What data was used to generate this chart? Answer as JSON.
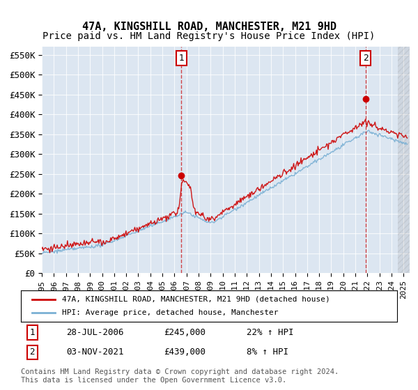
{
  "title": "47A, KINGSHILL ROAD, MANCHESTER, M21 9HD",
  "subtitle": "Price paid vs. HM Land Registry's House Price Index (HPI)",
  "ylabel_ticks": [
    "£0",
    "£50K",
    "£100K",
    "£150K",
    "£200K",
    "£250K",
    "£300K",
    "£350K",
    "£400K",
    "£450K",
    "£500K",
    "£550K"
  ],
  "ytick_values": [
    0,
    50000,
    100000,
    150000,
    200000,
    250000,
    300000,
    350000,
    400000,
    450000,
    500000,
    550000
  ],
  "ylim": [
    0,
    570000
  ],
  "xlim_start": 1995.0,
  "xlim_end": 2025.5,
  "background_color": "#dce6f1",
  "plot_bg_color": "#dce6f1",
  "hpi_color": "#7ab0d4",
  "sale_color": "#cc0000",
  "sale1_x": 2006.57,
  "sale1_y": 245000,
  "sale2_x": 2021.84,
  "sale2_y": 439000,
  "legend_line1": "47A, KINGSHILL ROAD, MANCHESTER, M21 9HD (detached house)",
  "legend_line2": "HPI: Average price, detached house, Manchester",
  "annotation1_label": "1",
  "annotation1_date": "28-JUL-2006",
  "annotation1_price": "£245,000",
  "annotation1_hpi": "22% ↑ HPI",
  "annotation2_label": "2",
  "annotation2_date": "03-NOV-2021",
  "annotation2_price": "£439,000",
  "annotation2_hpi": "8% ↑ HPI",
  "footer": "Contains HM Land Registry data © Crown copyright and database right 2024.\nThis data is licensed under the Open Government Licence v3.0.",
  "title_fontsize": 11,
  "subtitle_fontsize": 10,
  "tick_fontsize": 9
}
